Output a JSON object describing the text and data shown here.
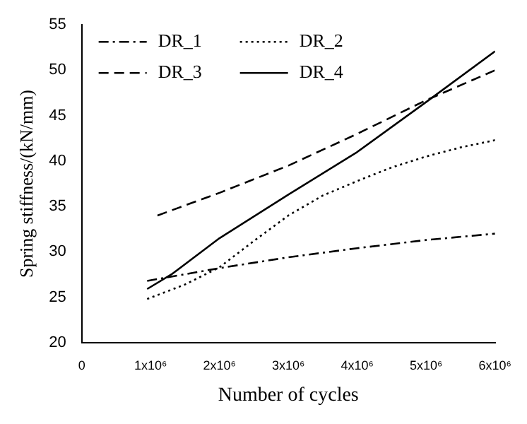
{
  "chart_data": {
    "type": "line",
    "xlabel": "Number of cycles",
    "ylabel": "Spring stiffness/(kN/mm)",
    "xlim": [
      0,
      6000000
    ],
    "ylim": [
      20,
      55
    ],
    "xticks": [
      0,
      {
        "value": 1000000,
        "label": "1x10⁶"
      },
      {
        "value": 2000000,
        "label": "2x10⁶"
      },
      {
        "value": 3000000,
        "label": "3x10⁶"
      },
      {
        "value": 4000000,
        "label": "4x10⁶"
      },
      {
        "value": 5000000,
        "label": "5x10⁶"
      },
      {
        "value": 6000000,
        "label": "6x10⁶"
      }
    ],
    "yticks": [
      20,
      25,
      30,
      35,
      40,
      45,
      50,
      55
    ],
    "grid": false,
    "legend": "top left",
    "marker": "none",
    "series": [
      {
        "name": "DR_1",
        "color": "#000000",
        "line_style": "dashdot",
        "x": [
          950000,
          2000000,
          3000000,
          4000000,
          5000000,
          6000000
        ],
        "values": [
          26.8,
          28.2,
          29.4,
          30.4,
          31.3,
          32
        ]
      },
      {
        "name": "DR_2",
        "color": "#000000",
        "line_style": "dotted",
        "x": [
          950000,
          1500000,
          2000000,
          2500000,
          3000000,
          3500000,
          4000000,
          4500000,
          5000000,
          5500000,
          6000000
        ],
        "values": [
          24.8,
          26.4,
          28.3,
          31.2,
          34,
          36.2,
          37.8,
          39.3,
          40.5,
          41.5,
          42.3
        ]
      },
      {
        "name": "DR_3",
        "color": "#000000",
        "line_style": "dashed",
        "x": [
          1100000,
          2000000,
          3000000,
          4000000,
          5000000,
          6000000
        ],
        "values": [
          34,
          36.5,
          39.5,
          43,
          46.7,
          50
        ]
      },
      {
        "name": "DR_4",
        "color": "#000000",
        "line_style": "solid",
        "x": [
          950000,
          1300000,
          2000000,
          3000000,
          4000000,
          5000000,
          6000000
        ],
        "values": [
          25.9,
          27.5,
          31.5,
          36.3,
          41,
          46.5,
          52.1
        ]
      }
    ]
  }
}
